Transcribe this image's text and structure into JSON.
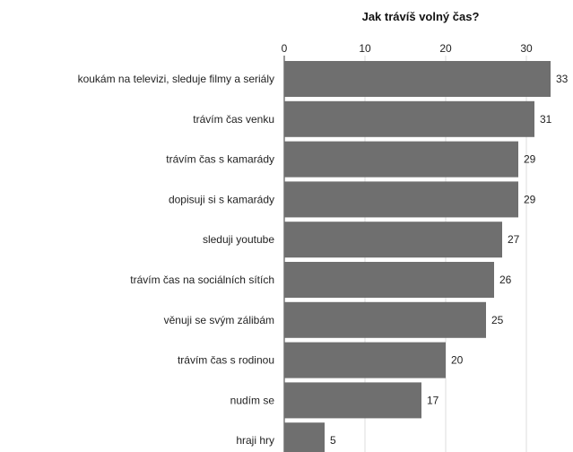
{
  "chart_data": {
    "type": "bar",
    "orientation": "horizontal",
    "title": "Jak trávíš volný čas?",
    "xlabel": "",
    "ylabel": "",
    "xlim": [
      0,
      33
    ],
    "ticks": [
      0,
      10,
      20,
      30
    ],
    "grid": true,
    "bar_color": "#6f6f6f",
    "categories": [
      "koukám na televizi, sleduje filmy a seriály",
      "trávím čas venku",
      "trávím čas s kamarády",
      "dopisuji si s kamarády",
      "sleduji youtube",
      "trávím čas na sociálních sítích",
      "věnuji se svým zálibám",
      "trávím čas s rodinou",
      "nudím se",
      "hraji hry"
    ],
    "values": [
      33,
      31,
      29,
      29,
      27,
      26,
      25,
      20,
      17,
      5
    ]
  }
}
